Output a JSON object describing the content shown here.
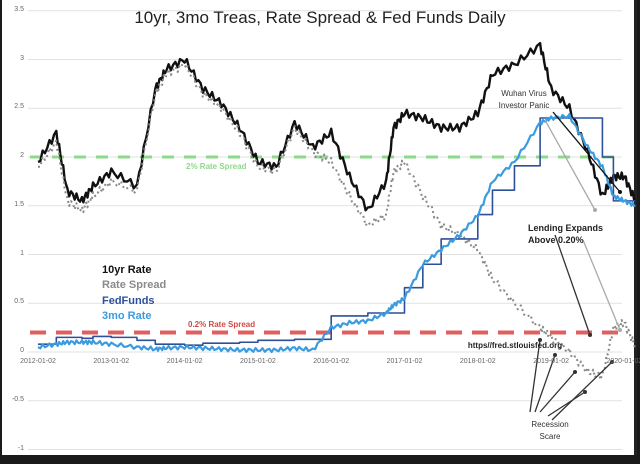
{
  "chart_data": {
    "type": "line",
    "title": "10yr, 3mo Treas, Rate Spread & Fed Funds Daily",
    "xlabel": "",
    "ylabel": "",
    "ylim": [
      -1,
      3.5
    ],
    "grid": true,
    "y_ticks": [
      "3.5",
      "3",
      "2.5",
      "2",
      "1.5",
      "1",
      "0.5",
      "0",
      "-0.5",
      "-1"
    ],
    "x_ticks": [
      "2012-01-02",
      "2013-01-02",
      "2014-01-02",
      "2015-01-02",
      "2016-01-02",
      "2017-01-02",
      "2018-01-02",
      "2019-01-02",
      "2020-01-02"
    ],
    "legend": {
      "position": "left-middle",
      "entries": [
        {
          "label": "10yr Rate",
          "color": "#111111"
        },
        {
          "label": "Rate Spread",
          "color": "#8a8a8a"
        },
        {
          "label": "FedFunds",
          "color": "#2e4f9a"
        },
        {
          "label": "3mo Rate",
          "color": "#3b9be0"
        }
      ]
    },
    "x": [
      2012.0,
      2012.25,
      2012.4,
      2012.6,
      2012.75,
      2013.0,
      2013.35,
      2013.6,
      2013.75,
      2014.0,
      2014.25,
      2014.5,
      2014.75,
      2015.0,
      2015.25,
      2015.5,
      2015.75,
      2016.0,
      2016.25,
      2016.5,
      2016.75,
      2016.85,
      2017.0,
      2017.25,
      2017.5,
      2017.75,
      2018.0,
      2018.2,
      2018.5,
      2018.85,
      2019.0,
      2019.25,
      2019.5,
      2019.7,
      2019.85,
      2020.0,
      2020.15
    ],
    "series": [
      {
        "name": "10yr Rate",
        "values": [
          1.95,
          2.25,
          1.65,
          1.55,
          1.7,
          1.85,
          1.7,
          2.7,
          2.9,
          3.0,
          2.7,
          2.55,
          2.3,
          1.95,
          1.9,
          2.35,
          2.1,
          2.25,
          1.8,
          1.45,
          1.75,
          2.3,
          2.45,
          2.4,
          2.3,
          2.3,
          2.45,
          2.85,
          2.95,
          3.15,
          2.7,
          2.5,
          2.05,
          1.6,
          1.8,
          1.8,
          1.55
        ]
      },
      {
        "name": "Rate Spread",
        "values": [
          1.9,
          2.15,
          1.55,
          1.45,
          1.6,
          1.75,
          1.65,
          2.65,
          2.85,
          2.95,
          2.65,
          2.5,
          2.25,
          1.9,
          1.85,
          2.3,
          2.05,
          1.95,
          1.6,
          1.3,
          1.4,
          1.85,
          1.95,
          1.6,
          1.3,
          1.2,
          1.05,
          0.75,
          0.5,
          0.25,
          0.15,
          0.0,
          -0.2,
          -0.25,
          0.25,
          0.3,
          0.05
        ]
      },
      {
        "name": "FedFunds",
        "values": [
          0.08,
          0.15,
          0.15,
          0.14,
          0.16,
          0.15,
          0.12,
          0.08,
          0.08,
          0.07,
          0.09,
          0.09,
          0.1,
          0.12,
          0.12,
          0.13,
          0.13,
          0.37,
          0.37,
          0.4,
          0.4,
          0.4,
          0.66,
          0.9,
          1.16,
          1.16,
          1.41,
          1.66,
          1.91,
          2.4,
          2.4,
          2.4,
          2.4,
          2.0,
          1.55,
          1.55,
          1.55
        ]
      },
      {
        "name": "3mo Rate",
        "values": [
          0.05,
          0.08,
          0.1,
          0.1,
          0.1,
          0.08,
          0.05,
          0.03,
          0.04,
          0.05,
          0.04,
          0.03,
          0.02,
          0.02,
          0.02,
          0.04,
          0.02,
          0.25,
          0.3,
          0.32,
          0.4,
          0.48,
          0.55,
          0.9,
          1.05,
          1.2,
          1.4,
          1.75,
          1.95,
          2.35,
          2.4,
          2.42,
          2.1,
          1.9,
          1.6,
          1.55,
          1.5
        ]
      }
    ],
    "reference_lines": [
      {
        "label": "2% Rate Spread",
        "y": 2.0,
        "color": "#8ed98a",
        "style": "dashed"
      },
      {
        "label": "0.2% Rate Spread",
        "y": 0.2,
        "color": "#e06060",
        "style": "dashed"
      }
    ],
    "annotations": [
      {
        "text": "Wuhan Virus Investor Panic",
        "x": 2018.6,
        "y": 2.6
      },
      {
        "text": "Lending Expands Above 0.20%",
        "x": 2019.4,
        "y": 0.95
      },
      {
        "text": "Recession Scare",
        "x": 2019.05,
        "y": -0.7
      },
      {
        "text": "https//fred.stlouisfed.org",
        "x": 2018.9,
        "y": 0.05
      }
    ]
  },
  "title": "10yr, 3mo Treas, Rate Spread & Fed Funds Daily",
  "legend": [
    "10yr Rate",
    "Rate Spread",
    "FedFunds",
    "3mo Rate"
  ],
  "labels": {
    "ref_2pct": "2% Rate Spread",
    "ref_02pct": "0.2% Rate Spread",
    "wuhan_line1": "Wuhan Virus",
    "wuhan_line2": "Investor Panic",
    "lending_line1": "Lending Expands",
    "lending_line2": "Above 0.20%",
    "recession_line1": "Recession",
    "recession_line2": "Scare",
    "source": "https//fred.stlouisfed.org"
  },
  "colors": {
    "ten_yr": "#111111",
    "spread": "#8a8a8a",
    "fedfunds": "#2e4f9a",
    "three_mo": "#3b9be0",
    "ref_2pct": "#8ed98a",
    "ref_02pct": "#e06060"
  }
}
